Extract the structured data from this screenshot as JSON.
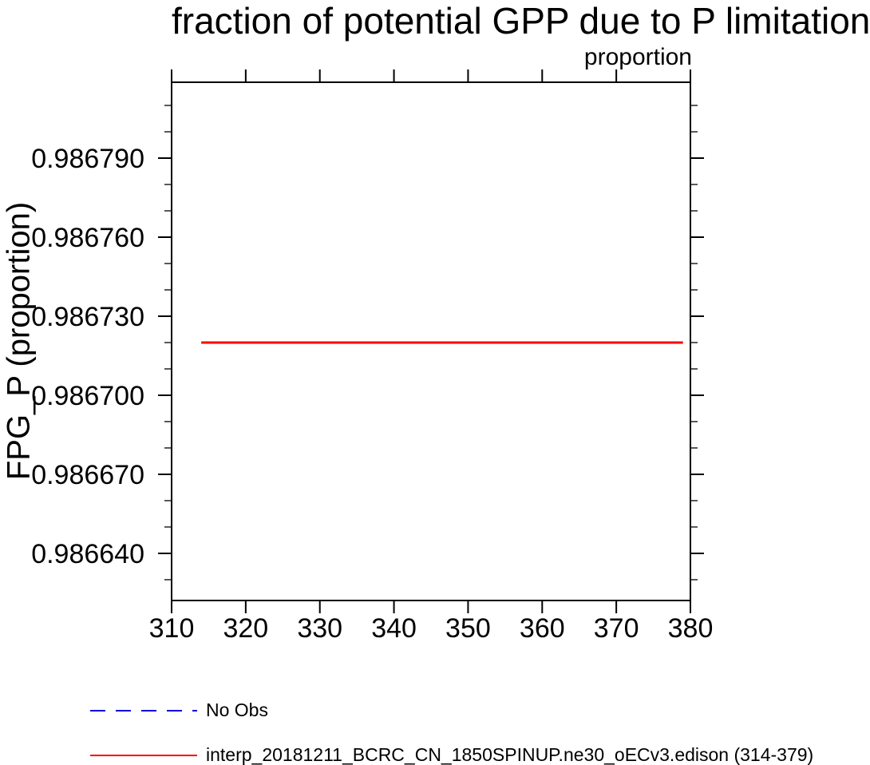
{
  "title": "fraction of potential GPP due to P limitation",
  "unit_label": "proportion",
  "ylabel": "FPG_P (proportion)",
  "axis_color": "#000000",
  "legend": {
    "items": [
      {
        "label": "No Obs",
        "color": "#0000DD",
        "style": "dashed"
      },
      {
        "label": "interp_20181211_BCRC_CN_1850SPINUP.ne30_oECv3.edison (314-379)",
        "color": "#FF0000",
        "style": "solid"
      }
    ]
  },
  "chart_data": {
    "type": "line",
    "title": "fraction of potential GPP due to P limitation",
    "xlabel": "",
    "ylabel": "FPG_P (proportion)",
    "unit_label": "proportion",
    "xlim": [
      310,
      380
    ],
    "ylim": [
      0.9866221,
      0.9868188
    ],
    "grid": false,
    "legend_position": "bottom-left",
    "x_ticks": [
      {
        "value": 310,
        "label": "310"
      },
      {
        "value": 320,
        "label": "320"
      },
      {
        "value": 330,
        "label": "330"
      },
      {
        "value": 340,
        "label": "340"
      },
      {
        "value": 350,
        "label": "350"
      },
      {
        "value": 360,
        "label": "360"
      },
      {
        "value": 370,
        "label": "370"
      },
      {
        "value": 380,
        "label": "380"
      }
    ],
    "y_major_ticks": [
      {
        "value": 0.98679,
        "label": "0.986790"
      },
      {
        "value": 0.98676,
        "label": "0.986760"
      },
      {
        "value": 0.98673,
        "label": "0.986730"
      },
      {
        "value": 0.9867,
        "label": "0.986700"
      },
      {
        "value": 0.98667,
        "label": "0.986670"
      },
      {
        "value": 0.98664,
        "label": "0.986640"
      }
    ],
    "y_minor_ticks": [
      0.98663,
      0.98665,
      0.98666,
      0.98668,
      0.98669,
      0.98671,
      0.98672,
      0.98674,
      0.98675,
      0.98677,
      0.98678,
      0.9868,
      0.98681
    ],
    "series": [
      {
        "name": "No Obs",
        "color": "#0000DD",
        "style": "dashed",
        "x": [],
        "y": []
      },
      {
        "name": "interp_20181211_BCRC_CN_1850SPINUP.ne30_oECv3.edison (314-379)",
        "color": "#FF0000",
        "style": "solid",
        "x": [
          314,
          379
        ],
        "y": [
          0.98672,
          0.98672
        ]
      }
    ]
  }
}
